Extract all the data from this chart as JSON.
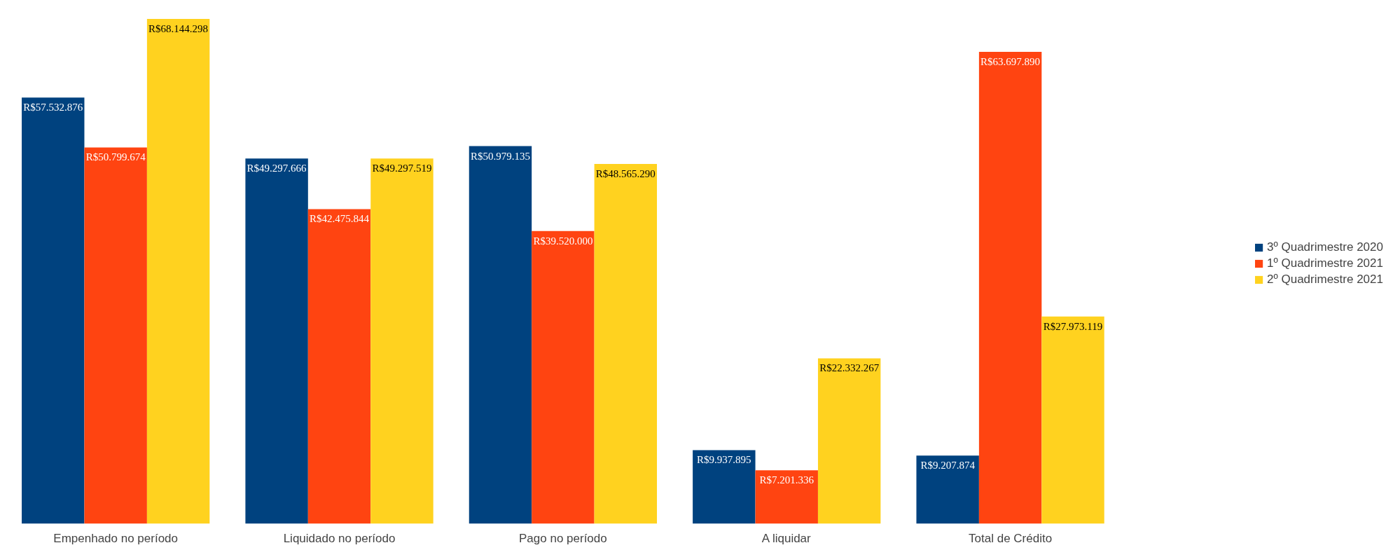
{
  "chart_data": {
    "type": "bar",
    "categories": [
      "Empenhado no período",
      "Liquidado no período",
      "Pago no período",
      "A liquidar",
      "Total de Crédito"
    ],
    "series": [
      {
        "name": "3º Quadrimestre 2020",
        "color": "#00427f",
        "values": [
          57532876,
          49297666,
          50979135,
          9937895,
          9207874
        ],
        "value_labels": [
          "R$57.532.876",
          "R$49.297.666",
          "R$50.979.135",
          "R$9.937.895",
          "R$9.207.874"
        ]
      },
      {
        "name": "1º Quadrimestre 2021",
        "color": "#ff4411",
        "values": [
          50799674,
          42475844,
          39520000,
          7201336,
          63697890
        ],
        "value_labels": [
          "R$50.799.674",
          "R$42.475.844",
          "R$39.520.000",
          "R$7.201.336",
          "R$63.697.890"
        ]
      },
      {
        "name": "2º Quadrimestre 2021",
        "color": "#ffd21f",
        "values": [
          68144298,
          49297519,
          48565290,
          22332267,
          27973119
        ],
        "value_labels": [
          "R$68.144.298",
          "R$49.297.519",
          "R$48.565.290",
          "R$22.332.267",
          "R$27.973.119"
        ]
      }
    ],
    "tick_labels": "x",
    "grid": false,
    "legend": "right"
  }
}
